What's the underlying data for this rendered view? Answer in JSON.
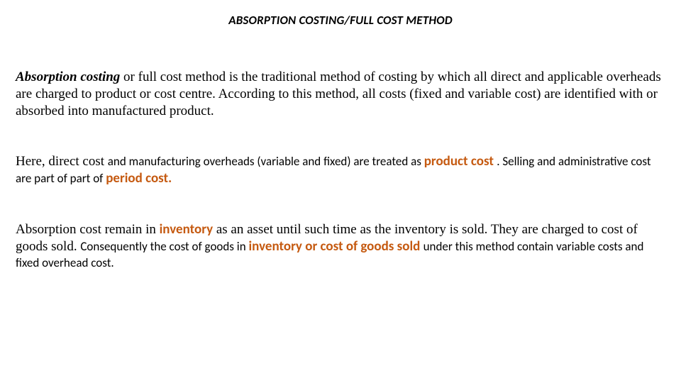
{
  "colors": {
    "text": "#000000",
    "accent": "#c55a11",
    "background": "#ffffff"
  },
  "fonts": {
    "serif_family": "Times New Roman",
    "sans_family": "Calibri",
    "title_size_pt": 13,
    "body_size_pt": 14
  },
  "title": "ABSORPTION COSTING/FULL COST METHOD",
  "p1": {
    "lead_bold_italic": "Absorption costing",
    "rest": " or full cost method is the traditional  method of costing by which all direct and applicable overheads are charged to product or cost centre. According to this method, all costs (fixed and variable cost) are identified with or absorbed into manufactured product."
  },
  "p2": {
    "lead": "Here, direct cost ",
    "mid_sans": "  and manufacturing  overheads (variable and fixed) are  treated as ",
    "accent1": "product cost ",
    "after_accent1": ".   Selling and administrative  cost are part of part of ",
    "accent2": "period cost.",
    "tail": ""
  },
  "p3": {
    "lead": "Absorption cost  remain in ",
    "accent1": "inventory",
    "mid_serif": " as an asset until such time as the inventory is sold. They are charged to cost of goods sold.  ",
    "sans1": "Consequently the cost of goods in  ",
    "accent2": "inventory or ",
    "sans2": " ",
    "accent3": "cost of goods sold ",
    "sans3": "under this method  contain variable costs and fixed overhead cost."
  }
}
